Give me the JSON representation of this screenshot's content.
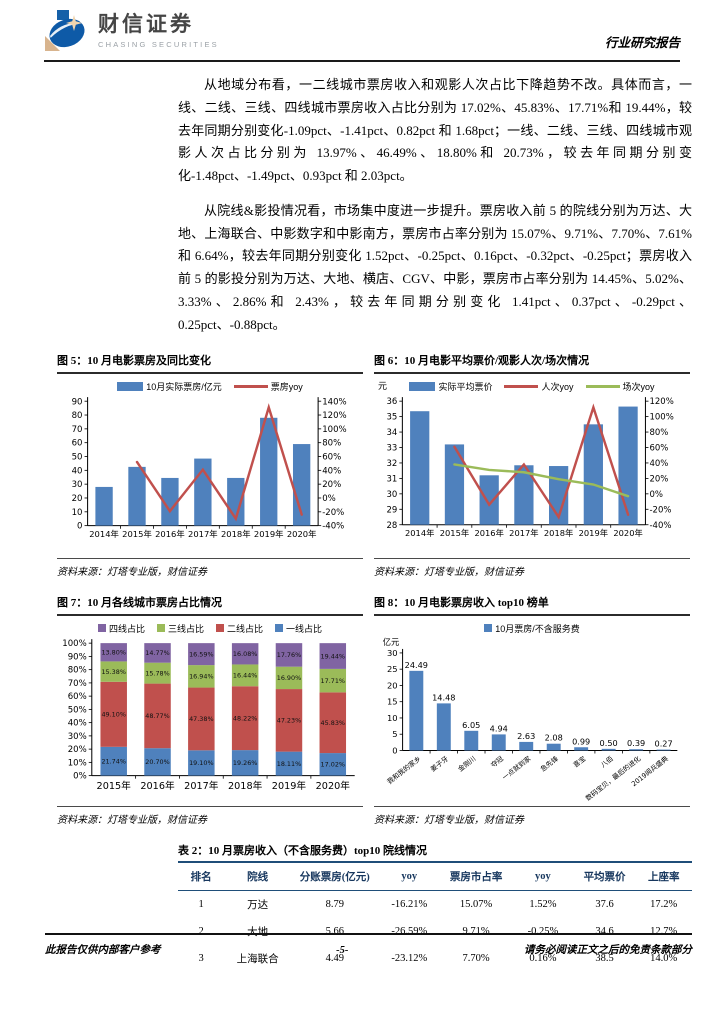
{
  "header": {
    "brand_cn": "财信证券",
    "brand_en": "CHASING SECURITIES",
    "doc_type": "行业研究报告"
  },
  "paragraphs": [
    "从地域分布看，一二线城市票房收入和观影人次占比下降趋势不改。具体而言，一线、二线、三线、四线城市票房收入占比分别为 17.02%、45.83%、17.71%和 19.44%，较去年同期分别变化-1.09pct、-1.41pct、0.82pct 和 1.68pct；一线、二线、三线、四线城市观影人次占比分别为 13.97%、46.49%、18.80%和 20.73%，较去年同期分别变化-1.48pct、-1.49pct、0.93pct 和 2.03pct。",
    "从院线&影投情况看，市场集中度进一步提升。票房收入前 5 的院线分别为万达、大地、上海联合、中影数字和中影南方，票房市占率分别为 15.07%、9.71%、7.70%、7.61%和 6.64%，较去年同期分别变化 1.52pct、-0.25pct、0.16pct、-0.32pct、-0.25pct；票房收入前 5 的影投分别为万达、大地、横店、CGV、中影，票房市占率分别为 14.45%、5.02%、3.33%、2.86%和 2.43%，较去年同期分别变化 1.41pct、0.37pct、-0.29pct、0.25pct、-0.88pct。"
  ],
  "figures": {
    "fig5": {
      "title": "图 5：10 月电影票房及同比变化",
      "source": "资料来源：灯塔专业版，财信证券"
    },
    "fig6": {
      "title": "图 6：10 月电影平均票价/观影人次/场次情况",
      "source": "资料来源：灯塔专业版，财信证券"
    },
    "fig7": {
      "title": "图 7：10 月各线城市票房占比情况",
      "source": "资料来源：灯塔专业版，财信证券"
    },
    "fig8": {
      "title": "图 8：10 月电影票房收入 top10 榜单",
      "source": "资料来源：灯塔专业版，财信证券"
    }
  },
  "chart_data": [
    {
      "id": "fig5",
      "type": "bar+line",
      "title": "10 月电影票房及同比变化",
      "categories": [
        "2014年",
        "2015年",
        "2016年",
        "2017年",
        "2018年",
        "2019年",
        "2020年"
      ],
      "series": [
        {
          "name": "10月实际票房/亿元",
          "type": "bar",
          "axis": "left",
          "color": "#4f81bd",
          "values": [
            28,
            42.5,
            34.5,
            48.5,
            34.5,
            78,
            59
          ]
        },
        {
          "name": "票房yoy",
          "type": "line",
          "axis": "right",
          "color": "#c0504d",
          "values": [
            null,
            52,
            -19,
            41,
            -30,
            131,
            -24
          ]
        }
      ],
      "left_axis": {
        "min": 0,
        "max": 90,
        "step": 10,
        "suffix": ""
      },
      "right_axis": {
        "min": -40,
        "max": 140,
        "step": 20,
        "suffix": "%"
      }
    },
    {
      "id": "fig6",
      "type": "bar+line",
      "title": "10 月电影平均票价/观影人次/场次情况",
      "unit": "元",
      "categories": [
        "2014年",
        "2015年",
        "2016年",
        "2017年",
        "2018年",
        "2019年",
        "2020年"
      ],
      "series": [
        {
          "name": "实际平均票价",
          "type": "bar",
          "axis": "left",
          "color": "#4f81bd",
          "values": [
            35.35,
            33.2,
            31.2,
            31.85,
            31.8,
            34.5,
            35.65
          ]
        },
        {
          "name": "人次yoy",
          "type": "line",
          "axis": "right",
          "color": "#c0504d",
          "values": [
            null,
            61,
            -14,
            38,
            -30,
            112,
            -27
          ]
        },
        {
          "name": "场次yoy",
          "type": "line",
          "axis": "right",
          "color": "#9bbb59",
          "values": [
            null,
            38,
            31,
            28,
            19,
            12,
            -3
          ]
        }
      ],
      "left_axis": {
        "min": 28,
        "max": 36,
        "step": 1,
        "suffix": ""
      },
      "right_axis": {
        "min": -40,
        "max": 120,
        "step": 20,
        "suffix": "%"
      }
    },
    {
      "id": "fig7",
      "type": "stacked-bar",
      "title": "10 月各线城市票房占比情况",
      "categories": [
        "2015年",
        "2016年",
        "2017年",
        "2018年",
        "2019年",
        "2020年"
      ],
      "series": [
        {
          "name": "一线占比",
          "color": "#4f81bd",
          "values": [
            21.74,
            20.7,
            19.1,
            19.26,
            18.11,
            17.02
          ]
        },
        {
          "name": "二线占比",
          "color": "#c0504d",
          "values": [
            49.1,
            48.77,
            47.38,
            48.22,
            47.23,
            45.83
          ]
        },
        {
          "name": "三线占比",
          "color": "#9bbb59",
          "values": [
            15.38,
            15.78,
            16.94,
            16.44,
            16.9,
            17.71
          ]
        },
        {
          "name": "四线占比",
          "color": "#8064a2",
          "values": [
            13.8,
            14.77,
            16.59,
            16.08,
            17.76,
            19.44
          ]
        }
      ],
      "y_axis": {
        "min": 0,
        "max": 100,
        "step": 10,
        "suffix": "%"
      }
    },
    {
      "id": "fig8",
      "type": "bar",
      "title": "10 月电影票房收入 top10 榜单",
      "unit": "亿元",
      "legend": "10月票房/不含服务费",
      "color": "#4f81bd",
      "categories": [
        "我和我的家乡",
        "姜子牙",
        "金刚川",
        "夺冠",
        "一点就到家",
        "急先锋",
        "喜宝",
        "八佰",
        "数码宝贝，最后的进化",
        "2019阅兵盛典"
      ],
      "values": [
        24.49,
        14.48,
        6.05,
        4.94,
        2.63,
        2.08,
        0.99,
        0.5,
        0.39,
        0.27
      ],
      "y_axis": {
        "min": 0,
        "max": 30,
        "step": 5,
        "suffix": ""
      }
    }
  ],
  "table2": {
    "title": "表 2：10 月票房收入（不含服务费）top10 院线情况",
    "headers": [
      "排名",
      "院线",
      "分账票房(亿元)",
      "yoy",
      "票房市占率",
      "yoy",
      "平均票价",
      "上座率"
    ],
    "rows": [
      [
        "1",
        "万达",
        "8.79",
        "-16.21%",
        "15.07%",
        "1.52%",
        "37.6",
        "17.2%"
      ],
      [
        "2",
        "大地",
        "5.66",
        "-26.59%",
        "9.71%",
        "-0.25%",
        "34.6",
        "12.7%"
      ],
      [
        "3",
        "上海联合",
        "4.49",
        "-23.12%",
        "7.70%",
        "0.16%",
        "38.5",
        "14.0%"
      ]
    ]
  },
  "footer": {
    "left": "此报告仅供内部客户参考",
    "center": "-5-",
    "right": "请务必阅读正文之后的免责条款部分"
  }
}
